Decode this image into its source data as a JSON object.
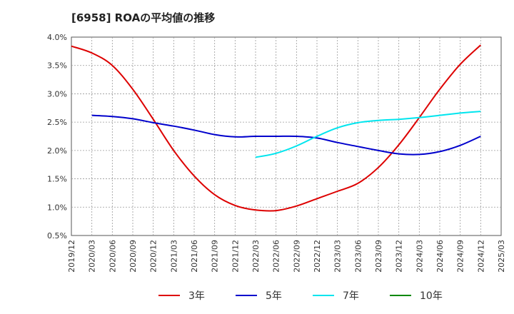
{
  "title": "[6958]  ROAの平均値の推移",
  "chart_data": {
    "type": "line",
    "x": [
      "2019/12",
      "2020/03",
      "2020/06",
      "2020/09",
      "2020/12",
      "2021/03",
      "2021/06",
      "2021/09",
      "2021/12",
      "2022/03",
      "2022/06",
      "2022/09",
      "2022/12",
      "2023/03",
      "2023/06",
      "2023/09",
      "2023/12",
      "2024/03",
      "2024/06",
      "2024/09",
      "2024/12",
      "2025/03"
    ],
    "yticks": [
      "0.5%",
      "1.0%",
      "1.5%",
      "2.0%",
      "2.5%",
      "3.0%",
      "3.5%",
      "4.0%"
    ],
    "ylim": [
      0.5,
      4.0
    ],
    "grid": true,
    "legend_position": "bottom",
    "series": [
      {
        "name": "3年",
        "color": "#dd0000",
        "values": [
          3.84,
          3.72,
          3.5,
          3.08,
          2.55,
          2.0,
          1.55,
          1.22,
          1.03,
          0.95,
          0.94,
          1.02,
          1.15,
          1.28,
          1.42,
          1.7,
          2.1,
          2.58,
          3.08,
          3.52,
          3.86,
          null
        ]
      },
      {
        "name": "5年",
        "color": "#0000cc",
        "values": [
          null,
          2.62,
          2.6,
          2.56,
          2.49,
          2.43,
          2.36,
          2.28,
          2.24,
          2.25,
          2.25,
          2.25,
          2.22,
          2.14,
          2.07,
          2.0,
          1.94,
          1.93,
          1.98,
          2.09,
          2.25,
          null
        ]
      },
      {
        "name": "7年",
        "color": "#00e5ee",
        "values": [
          null,
          null,
          null,
          null,
          null,
          null,
          null,
          null,
          null,
          1.88,
          1.95,
          2.08,
          2.25,
          2.4,
          2.49,
          2.53,
          2.55,
          2.58,
          2.62,
          2.66,
          2.69,
          null
        ]
      },
      {
        "name": "10年",
        "color": "#008800",
        "values": [
          null,
          null,
          null,
          null,
          null,
          null,
          null,
          null,
          null,
          null,
          null,
          null,
          null,
          null,
          null,
          null,
          null,
          null,
          null,
          null,
          null,
          null
        ]
      }
    ]
  }
}
